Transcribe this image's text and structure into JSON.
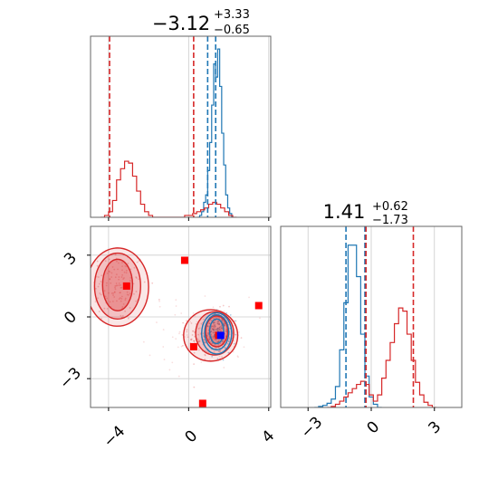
{
  "chart_data": [
    {
      "type": "histogram",
      "panel": "top-left",
      "parameter": "param_1",
      "title": {
        "median": "−3.12",
        "plus": "+3.33",
        "minus": "−0.65"
      },
      "xlim": [
        -4.9,
        4.1
      ],
      "grid": true,
      "series": [
        {
          "color": "#1f77b4",
          "quantiles": [
            0.95,
            1.35
          ],
          "bins_x": [
            0.5,
            0.6,
            0.7,
            0.8,
            0.9,
            1.0,
            1.1,
            1.2,
            1.3,
            1.4,
            1.5,
            1.6,
            1.7,
            1.8,
            1.9,
            2.0,
            2.1,
            2.2
          ],
          "counts": [
            0,
            1,
            3,
            8,
            12,
            25,
            40,
            60,
            82,
            75,
            90,
            70,
            45,
            28,
            12,
            5,
            2,
            0
          ]
        },
        {
          "color": "#d62728",
          "quantiles": [
            -3.95,
            0.25
          ],
          "bins_x": [
            -4.3,
            -4.1,
            -3.9,
            -3.7,
            -3.5,
            -3.3,
            -3.1,
            -2.9,
            -2.7,
            -2.5,
            -2.3,
            -2.1,
            -1.9,
            -1.7,
            -1.5,
            -1.3,
            -1.1,
            -0.9,
            -0.7,
            -0.5,
            -0.3,
            -0.1,
            0.1,
            0.3,
            0.5,
            0.7,
            0.9,
            1.1,
            1.3,
            1.5,
            1.7,
            1.9,
            2.1,
            2.3
          ],
          "counts": [
            0,
            1,
            3,
            9,
            20,
            26,
            30,
            29,
            22,
            14,
            7,
            3,
            1,
            0,
            0,
            0,
            0,
            0,
            0,
            0,
            0,
            1,
            1,
            2,
            3,
            4,
            5,
            7,
            8,
            7,
            5,
            3,
            1,
            0
          ]
        }
      ]
    },
    {
      "type": "histogram",
      "panel": "bottom-right",
      "parameter": "param_2",
      "title": {
        "median": "1.41",
        "plus": "+0.62",
        "minus": "−1.73"
      },
      "xlim": [
        -4.3,
        4.3
      ],
      "grid": true,
      "series": [
        {
          "color": "#1f77b4",
          "quantiles": [
            -1.2,
            -0.3
          ],
          "bins_x": [
            -2.6,
            -2.4,
            -2.2,
            -2.0,
            -1.8,
            -1.6,
            -1.4,
            -1.2,
            -1.0,
            -0.8,
            -0.6,
            -0.4,
            -0.2,
            0.0,
            0.2,
            0.4
          ],
          "counts": [
            0,
            1,
            2,
            4,
            8,
            20,
            55,
            100,
            155,
            155,
            125,
            70,
            30,
            10,
            3,
            0
          ]
        },
        {
          "color": "#d62728",
          "quantiles": [
            -0.25,
            2.0
          ],
          "bins_x": [
            -2.0,
            -1.8,
            -1.6,
            -1.4,
            -1.2,
            -1.0,
            -0.8,
            -0.6,
            -0.4,
            -0.2,
            0.0,
            0.2,
            0.4,
            0.6,
            0.8,
            1.0,
            1.2,
            1.4,
            1.6,
            1.8,
            2.0,
            2.2,
            2.4,
            2.6,
            2.8,
            3.0
          ],
          "counts": [
            0,
            1,
            3,
            6,
            10,
            14,
            18,
            22,
            25,
            22,
            12,
            6,
            12,
            28,
            45,
            62,
            80,
            95,
            92,
            70,
            45,
            24,
            12,
            5,
            2,
            0
          ]
        }
      ]
    },
    {
      "type": "scatter",
      "panel": "bottom-left",
      "xparam": "param_1",
      "yparam": "param_2",
      "xlim": [
        -4.9,
        4.1
      ],
      "ylim": [
        -4.4,
        4.4
      ],
      "grid": true,
      "contours_red": [
        {
          "cx": -3.55,
          "cy": 1.55,
          "rx": 0.75,
          "ry": 1.25,
          "rot": 0
        },
        {
          "cx": -3.55,
          "cy": 1.5,
          "rx": 1.15,
          "ry": 1.6,
          "rot": 0
        },
        {
          "cx": -3.55,
          "cy": 1.45,
          "rx": 1.55,
          "ry": 1.9,
          "rot": 0
        },
        {
          "cx": 1.4,
          "cy": -0.7,
          "rx": 0.55,
          "ry": 0.75,
          "rot": 0
        },
        {
          "cx": 1.3,
          "cy": -0.8,
          "rx": 0.95,
          "ry": 1.05,
          "rot": 0
        },
        {
          "cx": 1.1,
          "cy": -0.9,
          "rx": 1.35,
          "ry": 1.25,
          "rot": 0
        }
      ],
      "contours_blue": [
        {
          "cx": 1.4,
          "cy": -0.7,
          "rx": 0.35,
          "ry": 0.6,
          "rot": 0
        },
        {
          "cx": 1.4,
          "cy": -0.75,
          "rx": 0.6,
          "ry": 0.85,
          "rot": 0
        },
        {
          "cx": 1.4,
          "cy": -0.8,
          "rx": 0.75,
          "ry": 1.0,
          "rot": 0
        }
      ],
      "markers_red": [
        {
          "x": -3.1,
          "y": 1.5
        },
        {
          "x": -0.2,
          "y": 2.75
        },
        {
          "x": 0.25,
          "y": -1.45
        },
        {
          "x": 0.7,
          "y": -4.2
        },
        {
          "x": 3.5,
          "y": 0.55
        },
        {
          "x": 1.5,
          "y": -0.9
        }
      ],
      "markers_blue": [
        {
          "x": 1.6,
          "y": -0.9
        }
      ]
    }
  ],
  "axes": {
    "panel1_x_ticks": [
      "−4",
      "0",
      "4"
    ],
    "panel1_y_ticks": [
      "3",
      "0",
      "−3"
    ],
    "panel2_x_ticks": [
      "−3",
      "0",
      "3"
    ]
  }
}
